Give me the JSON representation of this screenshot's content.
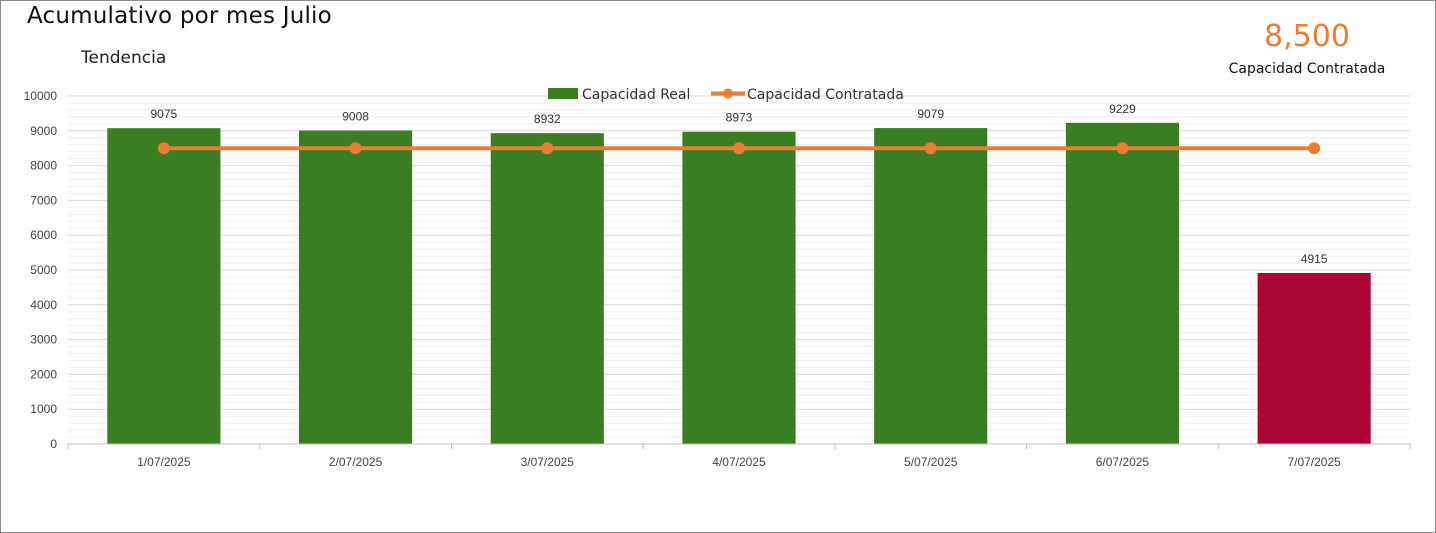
{
  "header": {
    "title": "Acumulativo por mes Julio",
    "subtitle": "Tendencia",
    "kpi_value": "8,500",
    "kpi_label": "Capacidad Contratada"
  },
  "colors": {
    "bar": "#3B7D23",
    "bar_highlight": "#AA0535",
    "line": "#ED7D31",
    "grid": "#d9d9d9",
    "minor_grid": "#efefef"
  },
  "chart_data": {
    "type": "bar",
    "categories": [
      "1/07/2025",
      "2/07/2025",
      "3/07/2025",
      "4/07/2025",
      "5/07/2025",
      "6/07/2025",
      "7/07/2025"
    ],
    "series": [
      {
        "name": "Capacidad Real",
        "type": "bar",
        "values": [
          9075,
          9008,
          8932,
          8973,
          9079,
          9229,
          4915
        ],
        "highlight_index": 6
      },
      {
        "name": "Capacidad Contratada",
        "type": "line",
        "values": [
          8500,
          8500,
          8500,
          8500,
          8500,
          8500,
          8500
        ]
      }
    ],
    "ylim": [
      0,
      10000
    ],
    "yticks": [
      0,
      1000,
      2000,
      3000,
      4000,
      5000,
      6000,
      7000,
      8000,
      9000,
      10000
    ],
    "grid": true,
    "legend": "top-center"
  }
}
